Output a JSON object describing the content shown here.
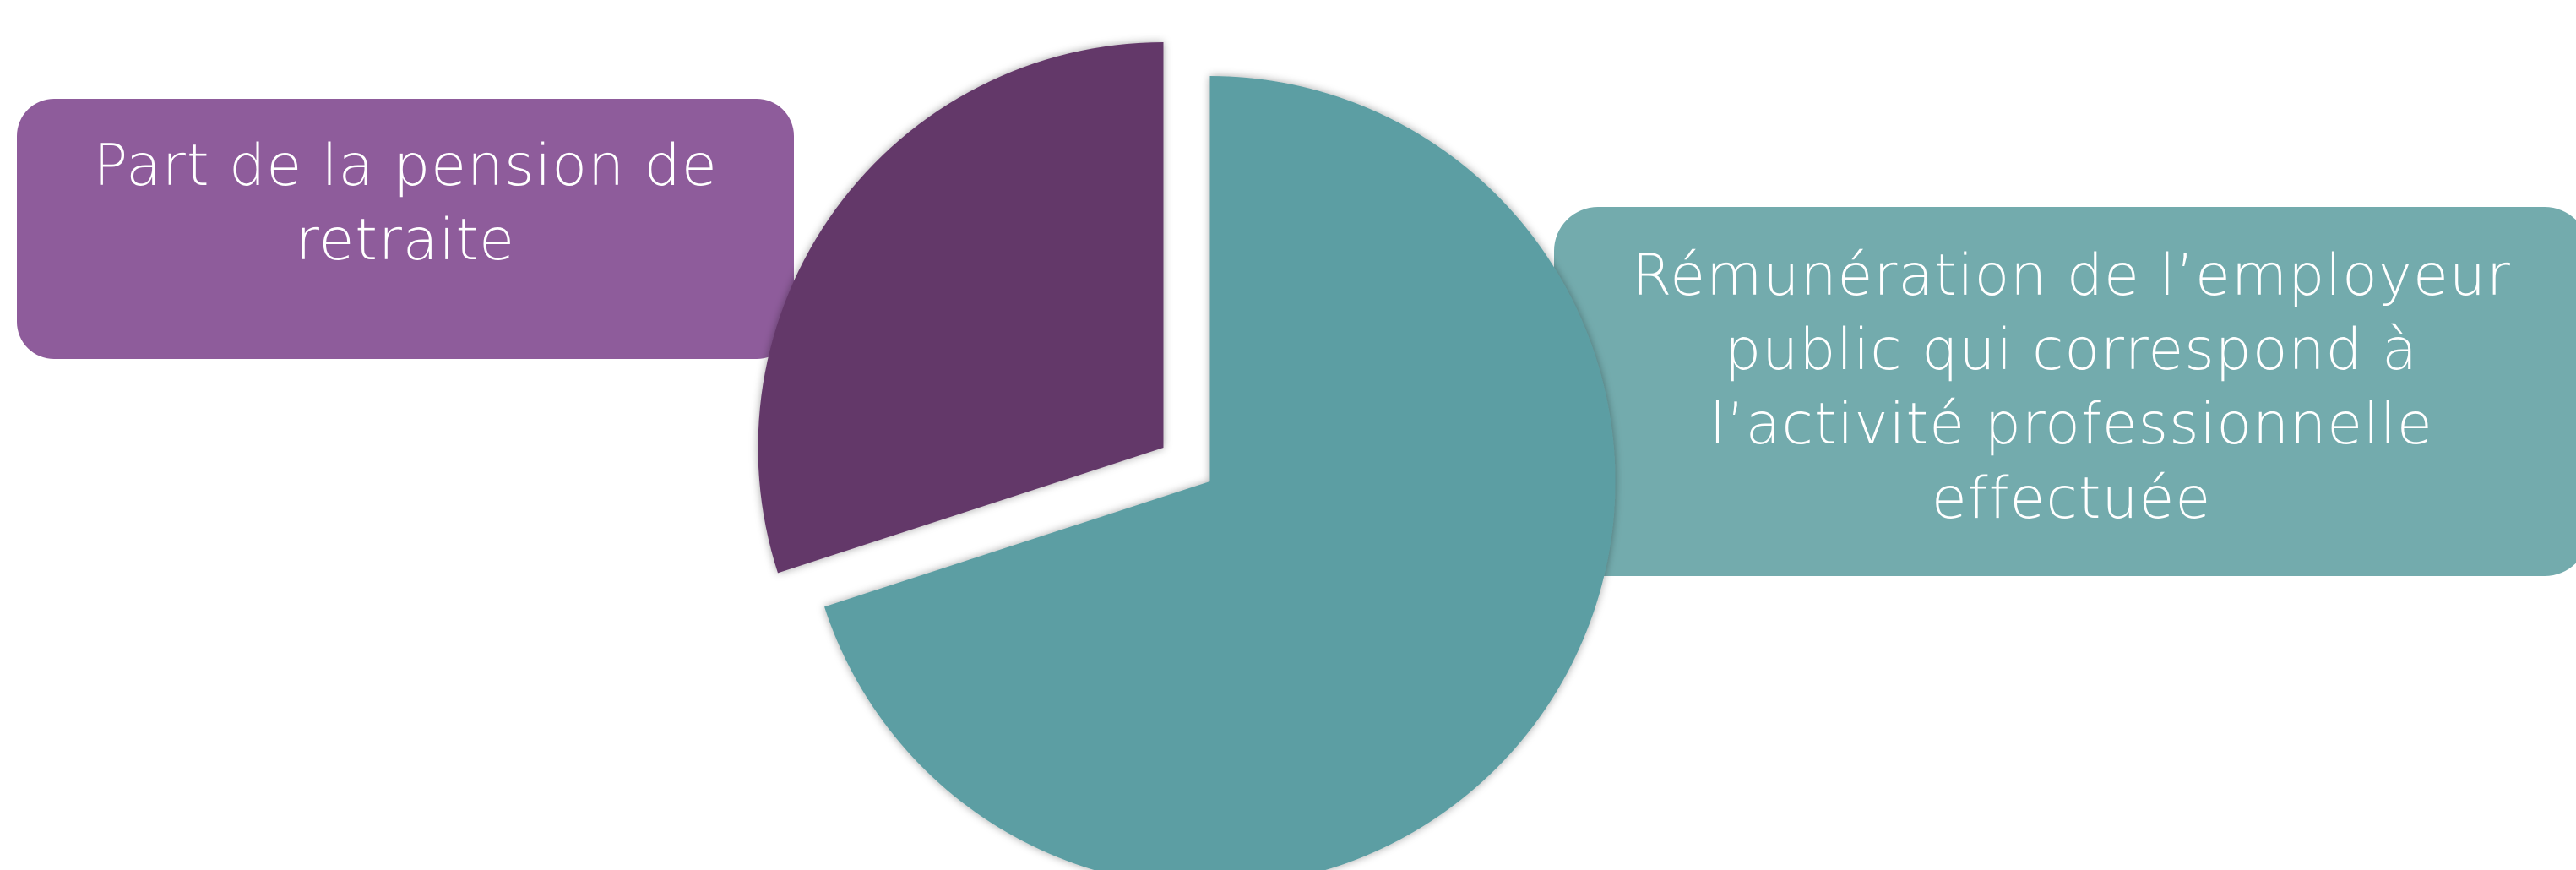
{
  "chart_data": {
    "type": "pie",
    "exploded": true,
    "slices": [
      {
        "label": "Part de la pension de retraite",
        "value": 30,
        "color": "#633869"
      },
      {
        "label": "Rémunération de l’employeur public qui correspond à l’activité professionnelle effectuée",
        "value": 70,
        "color": "#5c9ea3"
      }
    ]
  },
  "labels": {
    "left_box": {
      "text": "Part de la pension de retraite",
      "color": "#8e5c9b"
    },
    "right_box": {
      "text": "Rémunération de l’employeur public qui correspond à l’activité professionnelle effectuée",
      "color": "#73abad"
    }
  }
}
